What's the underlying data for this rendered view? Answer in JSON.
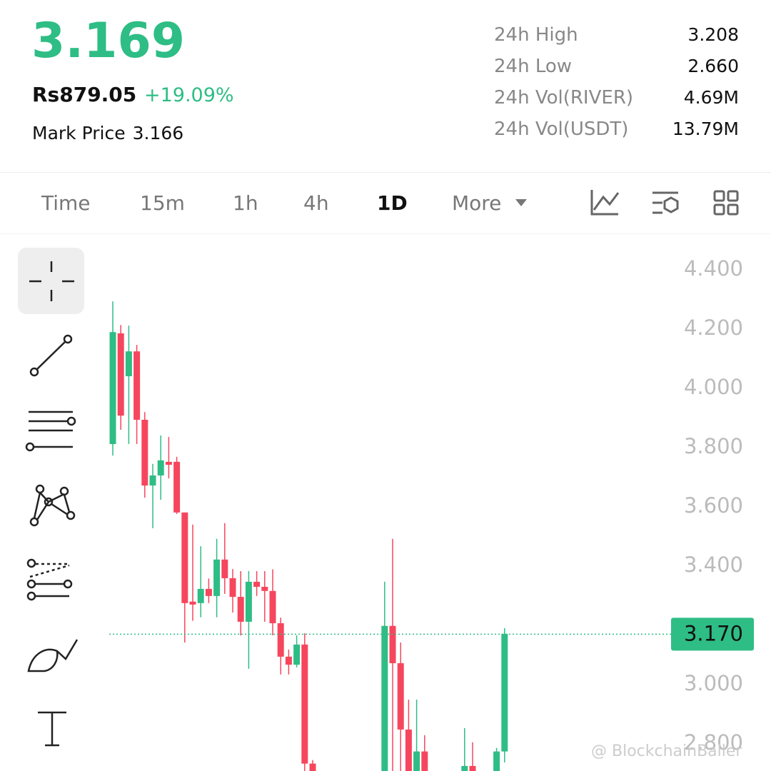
{
  "header": {
    "price": "3.169",
    "fiat_price": "Rs879.05",
    "change": "+19.09%",
    "mark_price_label": "Mark Price",
    "mark_price": "3.166",
    "stats": [
      {
        "label": "24h High",
        "value": "3.208"
      },
      {
        "label": "24h Low",
        "value": "2.660"
      },
      {
        "label": "24h Vol(RIVER)",
        "value": "4.69M"
      },
      {
        "label": "24h Vol(USDT)",
        "value": "13.79M"
      }
    ]
  },
  "tabs": [
    "Time",
    "15m",
    "1h",
    "4h",
    "1D",
    "More"
  ],
  "active_tab": "1D",
  "watermark": "@ BlockchainBaller",
  "chart_data": {
    "type": "candlestick",
    "up_color": "#2ebd85",
    "down_color": "#f6465d",
    "ylim": [
      2.708,
      4.516
    ],
    "yticks": [
      {
        "value": 2.8,
        "label": "2.800"
      },
      {
        "value": 3.0,
        "label": "3.000"
      },
      {
        "value": 3.4,
        "label": "3.400"
      },
      {
        "value": 3.6,
        "label": "3.600"
      },
      {
        "value": 3.8,
        "label": "3.800"
      },
      {
        "value": 4.0,
        "label": "4.000"
      },
      {
        "value": 4.2,
        "label": "4.200"
      },
      {
        "value": 4.4,
        "label": "4.400"
      }
    ],
    "last_price": {
      "value": 3.17,
      "label": "3.170"
    },
    "open": [
      3.812,
      4.186,
      4.041,
      4.125,
      3.894,
      3.672,
      3.706,
      3.752,
      3.752,
      3.581,
      3.28,
      3.275,
      3.323,
      3.299,
      3.422,
      3.359,
      3.296,
      3.212,
      3.347,
      3.33,
      3.316,
      3.207,
      3.094,
      3.067,
      3.135,
      2.733,
      null,
      null,
      null,
      null,
      null,
      null,
      null,
      null,
      2.7,
      3.198,
      3.072,
      2.848,
      2.7,
      2.774,
      null,
      null,
      null,
      null,
      2.7,
      2.725,
      null,
      null,
      2.7,
      2.774
    ],
    "high": [
      4.294,
      4.214,
      4.212,
      4.147,
      3.92,
      3.745,
      3.841,
      3.836,
      3.769,
      3.581,
      3.54,
      3.467,
      3.358,
      3.492,
      3.545,
      3.39,
      3.383,
      3.383,
      3.383,
      3.383,
      3.389,
      3.226,
      3.118,
      3.166,
      3.173,
      2.745,
      null,
      null,
      null,
      null,
      null,
      null,
      null,
      null,
      3.347,
      3.492,
      3.142,
      2.949,
      2.949,
      2.829,
      null,
      null,
      null,
      null,
      2.853,
      2.805,
      null,
      null,
      2.786,
      3.19
    ],
    "low": [
      3.773,
      3.86,
      3.812,
      3.812,
      3.631,
      3.528,
      3.624,
      3.696,
      3.576,
      3.142,
      3.215,
      3.227,
      3.275,
      3.227,
      3.306,
      3.243,
      3.166,
      3.053,
      3.299,
      3.212,
      3.166,
      3.034,
      3.034,
      3.058,
      2.7,
      2.7,
      null,
      null,
      null,
      null,
      null,
      null,
      null,
      null,
      2.7,
      2.7,
      2.7,
      2.7,
      2.7,
      2.7,
      null,
      null,
      null,
      null,
      2.7,
      2.7,
      null,
      null,
      2.7,
      2.737
    ],
    "close": [
      4.19,
      3.908,
      4.125,
      3.894,
      3.672,
      3.706,
      3.757,
      3.742,
      3.581,
      3.275,
      3.27,
      3.323,
      3.299,
      3.422,
      3.359,
      3.296,
      3.212,
      3.347,
      3.33,
      3.316,
      3.207,
      3.094,
      3.067,
      3.135,
      2.733,
      2.7,
      null,
      null,
      null,
      null,
      null,
      null,
      null,
      null,
      3.198,
      3.072,
      2.848,
      2.7,
      2.774,
      2.7,
      null,
      null,
      null,
      null,
      2.725,
      2.7,
      null,
      null,
      2.774,
      3.171
    ]
  }
}
